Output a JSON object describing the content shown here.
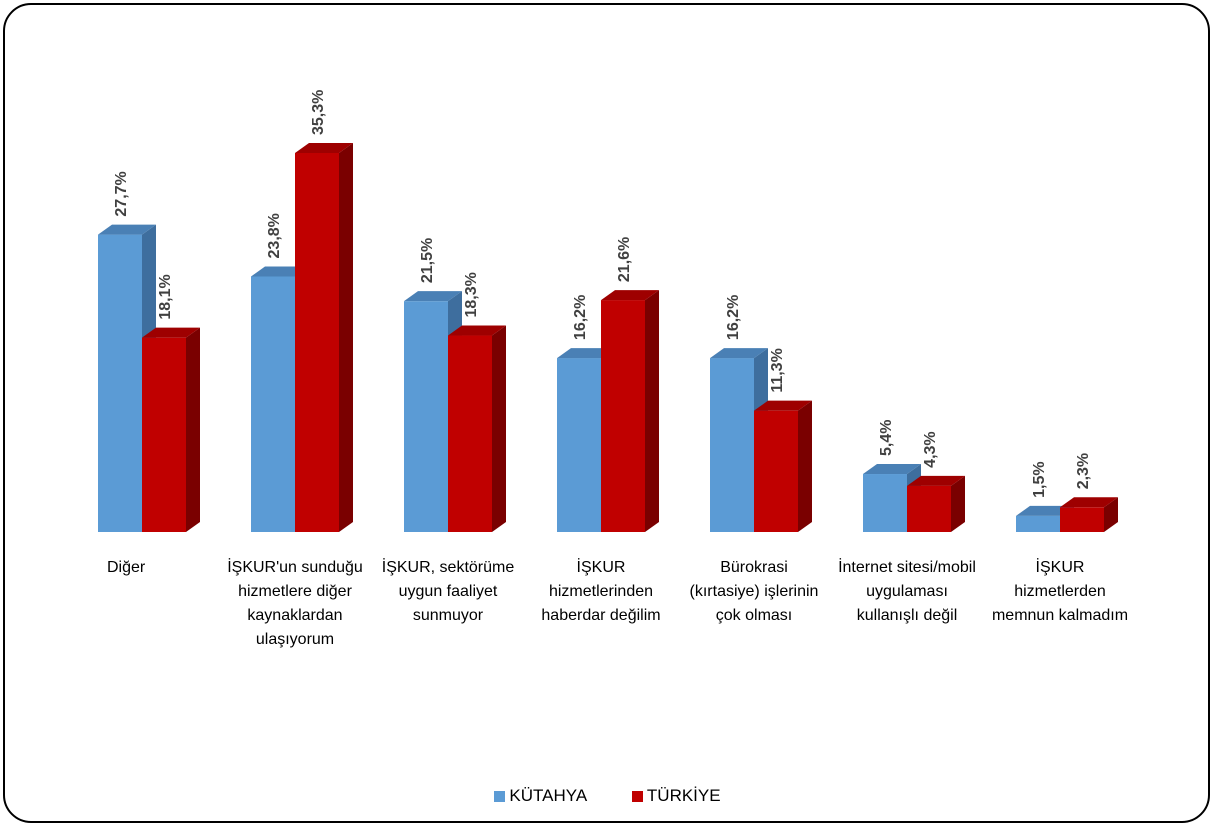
{
  "chart_data": {
    "type": "bar",
    "categories": [
      "Diğer",
      "İŞKUR'un sunduğu hizmetlere diğer kaynaklardan ulaşıyorum",
      "İŞKUR, sektörüme uygun faaliyet sunmuyor",
      "İŞKUR hizmetlerinden haberdar değilim",
      "Bürokrasi (kırtasiye) işlerinin çok olması",
      "İnternet sitesi/mobil uygulaması kullanışlı değil",
      "İŞKUR hizmetlerden memnun kalmadım"
    ],
    "series": [
      {
        "name": "KÜTAHYA",
        "color": "#5B9BD5",
        "values": [
          27.7,
          23.8,
          21.5,
          16.2,
          16.2,
          5.4,
          1.5
        ],
        "labels": [
          "27,7%",
          "23,8%",
          "21,5%",
          "16,2%",
          "16,2%",
          "5,4%",
          "1,5%"
        ]
      },
      {
        "name": "TÜRKİYE",
        "color": "#C00000",
        "values": [
          18.1,
          35.3,
          18.3,
          21.6,
          11.3,
          4.3,
          2.3
        ],
        "labels": [
          "18,1%",
          "35,3%",
          "18,3%",
          "21,6%",
          "11,3%",
          "4,3%",
          "2,3%"
        ]
      }
    ],
    "ylim": [
      0,
      35.3
    ],
    "grid": false,
    "legend_position": "bottom"
  }
}
